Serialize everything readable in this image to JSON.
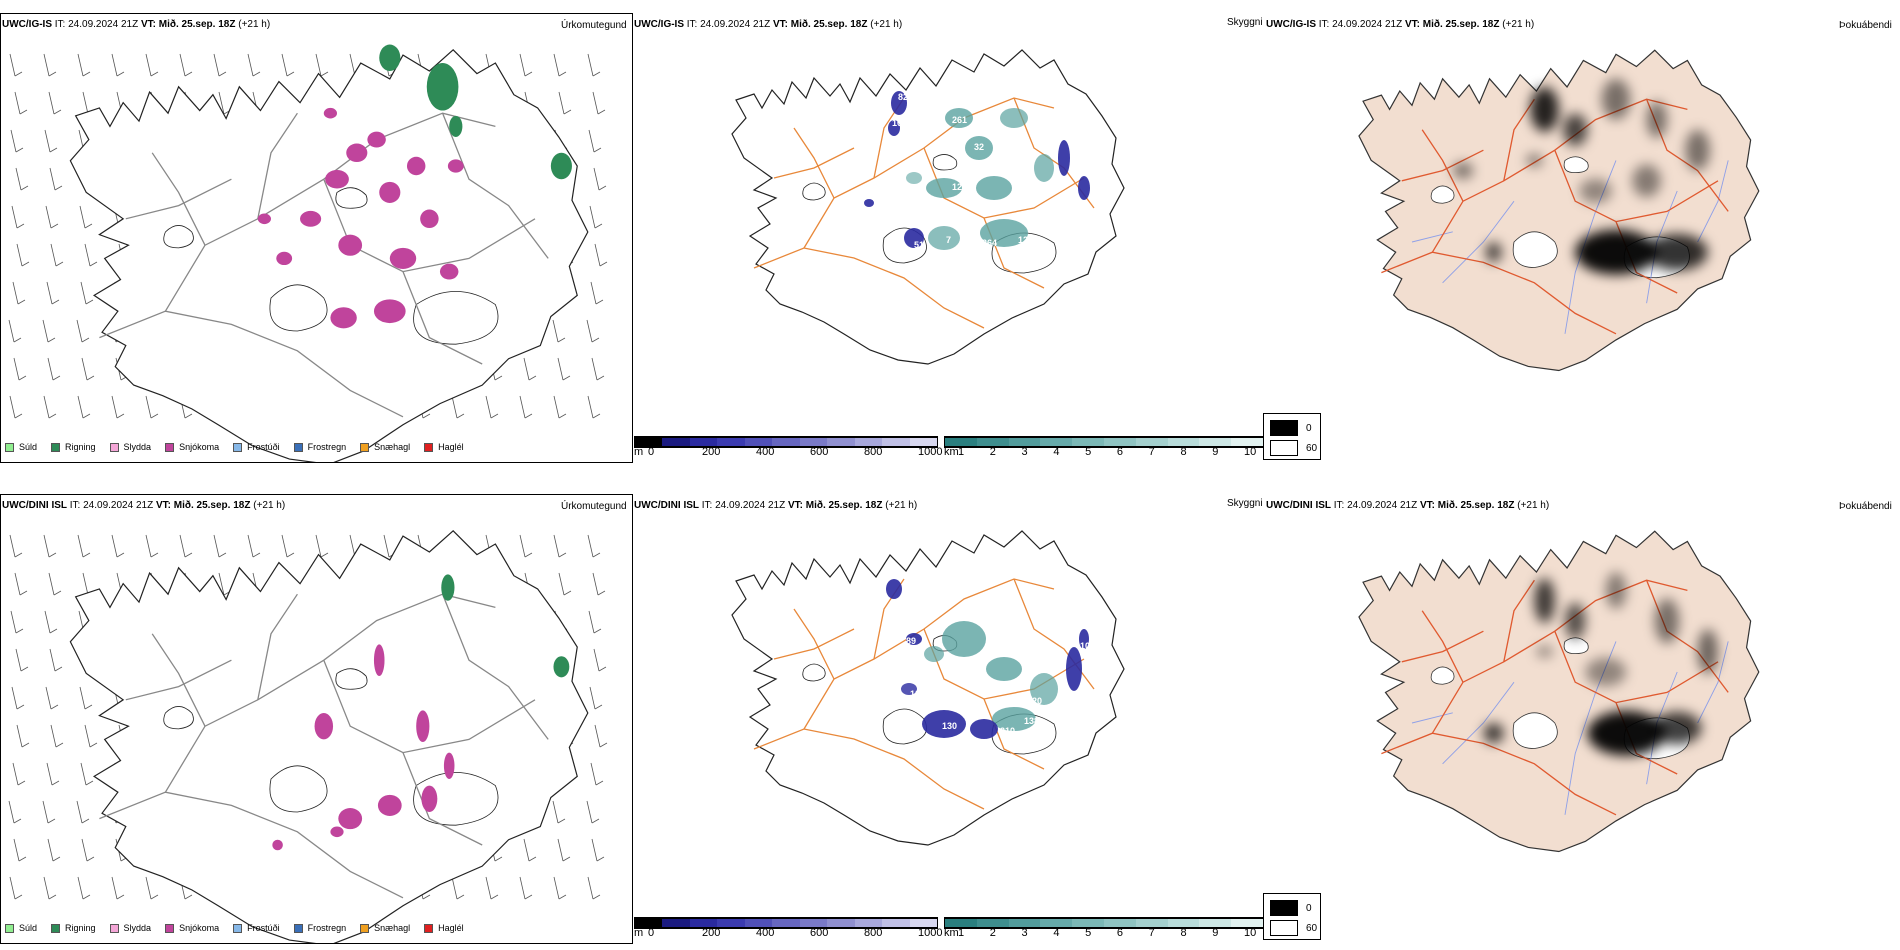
{
  "rows": [
    {
      "model_label": "UWC/IG-IS",
      "it_label": "IT:",
      "it_value": "24.09.2024 21Z",
      "vt_label": "VT:",
      "vt_value": "Mið. 25.sep. 18Z",
      "lead": "(+21 h)"
    },
    {
      "model_label": "UWC/DINI ISL",
      "it_label": "IT:",
      "it_value": "24.09.2024 21Z",
      "vt_label": "VT:",
      "vt_value": "Mið. 25.sep. 18Z",
      "lead": "(+21 h)"
    }
  ],
  "panel_titles": {
    "precip": "Úrkomutegund",
    "visibility": "Skyggni",
    "fog": "Þokuábendi"
  },
  "precip_legend": [
    {
      "label": "Súld",
      "color": "#90ee90"
    },
    {
      "label": "Rigning",
      "color": "#2e8b57"
    },
    {
      "label": "Slydda",
      "color": "#f4a6d7"
    },
    {
      "label": "Snjókoma",
      "color": "#c0449c"
    },
    {
      "label": "Frostúði",
      "color": "#87b8e8"
    },
    {
      "label": "Frostregn",
      "color": "#3a6fb8"
    },
    {
      "label": "Snæhagl",
      "color": "#f0a020"
    },
    {
      "label": "Haglél",
      "color": "#e02020"
    }
  ],
  "visibility_scale_m": {
    "unit": "m",
    "ticks": [
      "0",
      "200",
      "400",
      "600",
      "800",
      "1000"
    ],
    "colors": [
      "#000000",
      "#1a1a80",
      "#2a2aa0",
      "#3b3bb0",
      "#5050b8",
      "#6666c0",
      "#7a7ac8",
      "#9090d0",
      "#a8a8dc",
      "#c0c0e6",
      "#d8d8f0"
    ]
  },
  "visibility_scale_km": {
    "unit": "km",
    "ticks": [
      "1",
      "2",
      "3",
      "4",
      "5",
      "6",
      "7",
      "8",
      "9",
      "10"
    ],
    "colors": [
      "#2a7f7f",
      "#3e8e8e",
      "#529c9c",
      "#66aaaa",
      "#7bb8b6",
      "#8fc4c2",
      "#a4d0ce",
      "#b8dcda",
      "#cde7e5",
      "#e2f2f0"
    ]
  },
  "fog_legend": {
    "values": [
      "0",
      "60"
    ],
    "colors": [
      "#000000",
      "#ffffff"
    ]
  },
  "visibility_labels_row1": [
    "82",
    "10",
    "261",
    "32",
    "90",
    "29",
    "10",
    "129",
    "24",
    "51",
    "7",
    "264",
    "125"
  ],
  "visibility_labels_row2": [
    "89",
    "100",
    "130",
    "191",
    "210",
    "138",
    "20",
    "10"
  ]
}
